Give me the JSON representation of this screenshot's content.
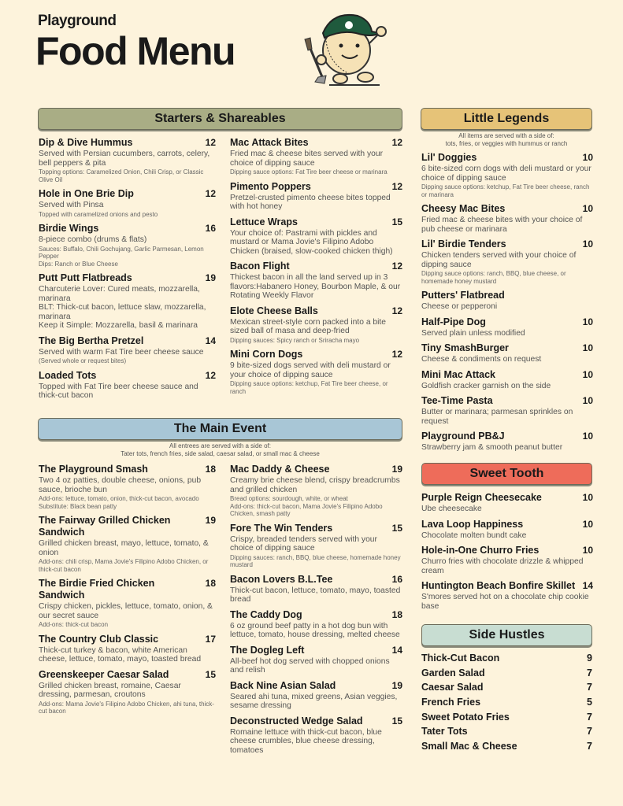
{
  "brand": "Playground",
  "title": "Food Menu",
  "colors": {
    "background": "#fdf3dc",
    "starters": "#a9ad85",
    "main": "#a8c6d6",
    "little": "#e6c378",
    "sweet": "#ee6c5a",
    "side": "#c8ddd2"
  },
  "starters": {
    "title": "Starters & Shareables",
    "left": [
      {
        "name": "Dip & Dive Hummus",
        "price": "12",
        "desc": "Served with Persian cucumbers, carrots, celery, bell peppers & pita",
        "sub": "Topping options: Caramelized Onion, Chili Crisp, or Classic Olive Oil"
      },
      {
        "name": "Hole in One Brie Dip",
        "price": "12",
        "desc": "Served with Pinsa",
        "sub": "Topped with caramelized onions and pesto"
      },
      {
        "name": "Birdie Wings",
        "price": "16",
        "desc": "8-piece combo (drums & flats)",
        "sub": "Sauces: Buffalo, Chili Gochujang, Garlic Parmesan, Lemon Pepper\nDips: Ranch or Blue Cheese"
      },
      {
        "name": "Putt Putt Flatbreads",
        "price": "19",
        "desc": "Charcuterie Lover: Cured meats, mozzarella, marinara\nBLT: Thick-cut bacon, lettuce slaw, mozzarella, marinara\nKeep it Simple: Mozzarella, basil & marinara"
      },
      {
        "name": "The Big Bertha Pretzel",
        "price": "14",
        "desc": "Served with warm Fat Tire beer cheese sauce",
        "sub": "(Served whole or request bites)"
      },
      {
        "name": "Loaded Tots",
        "price": "12",
        "desc": "Topped with Fat Tire beer cheese sauce and thick-cut bacon"
      }
    ],
    "right": [
      {
        "name": "Mac Attack Bites",
        "price": "12",
        "desc": "Fried mac & cheese bites served with your choice of dipping sauce",
        "sub": "Dipping sauce options: Fat Tire beer cheese or marinara"
      },
      {
        "name": "Pimento Poppers",
        "price": "12",
        "desc": "Pretzel-crusted pimento cheese bites topped with hot honey"
      },
      {
        "name": "Lettuce Wraps",
        "price": "15",
        "desc": "Your choice of: Pastrami with pickles and mustard or Mama Jovie's Filipino Adobo Chicken (braised, slow-cooked chicken thigh)"
      },
      {
        "name": "Bacon Flight",
        "price": "12",
        "desc": "Thickest bacon in all the land served up in 3 flavors:Habanero Honey, Bourbon Maple, & our Rotating Weekly Flavor"
      },
      {
        "name": "Elote Cheese Balls",
        "price": "12",
        "desc": "Mexican street-style corn packed into a bite sized ball of masa and deep-fried",
        "sub": "Dipping sauces: Spicy ranch or Sriracha mayo"
      },
      {
        "name": "Mini Corn Dogs",
        "price": "12",
        "desc": "9 bite-sized dogs served with deli mustard or your choice of dipping sauce",
        "sub": "Dipping sauce options: ketchup, Fat Tire beer cheese, or ranch"
      }
    ]
  },
  "main": {
    "title": "The Main Event",
    "note": "All entrees are served with a side of:\nTater tots, french fries, side salad, caesar salad, or small mac & cheese",
    "left": [
      {
        "name": "The Playground Smash",
        "price": "18",
        "desc": "Two 4 oz patties, double cheese, onions, pub sauce, brioche bun",
        "sub": "Add-ons: lettuce, tomato, onion, thick-cut bacon, avocado\nSubstitute: Black bean patty"
      },
      {
        "name": "The Fairway Grilled Chicken Sandwich",
        "price": "19",
        "desc": "Grilled chicken breast, mayo, lettuce, tomato, & onion",
        "sub": "Add-ons: chili crisp, Mama Jovie's Filipino Adobo Chicken, or thick-cut bacon"
      },
      {
        "name": "The Birdie Fried Chicken Sandwich",
        "price": "18",
        "desc": "Crispy chicken, pickles, lettuce, tomato, onion, & our secret sauce",
        "sub": "Add-ons: thick-cut bacon"
      },
      {
        "name": "The Country Club Classic",
        "price": "17",
        "desc": "Thick-cut turkey & bacon, white American cheese, lettuce, tomato, mayo, toasted bread"
      },
      {
        "name": "Greenskeeper Caesar Salad",
        "price": "15",
        "desc": "Grilled chicken breast, romaine, Caesar dressing, parmesan, croutons",
        "sub": "Add-ons: Mama Jovie's Filipino Adobo Chicken, ahi tuna, thick-cut bacon"
      }
    ],
    "right": [
      {
        "name": "Mac Daddy & Cheese",
        "price": "19",
        "desc": "Creamy brie cheese blend, crispy breadcrumbs and grilled chicken",
        "sub": "Bread options: sourdough, white, or wheat\nAdd-ons: thick-cut bacon, Mama Jovie's Filipino Adobo Chicken, smash patty"
      },
      {
        "name": "Fore The Win Tenders",
        "price": "15",
        "desc": "Crispy, breaded tenders served with your choice of dipping sauce",
        "sub": "Dipping sauces: ranch, BBQ, blue cheese, homemade honey mustard"
      },
      {
        "name": "Bacon Lovers B.L.Tee",
        "price": "16",
        "desc": "Thick-cut bacon, lettuce, tomato, mayo, toasted bread"
      },
      {
        "name": "The Caddy Dog",
        "price": "18",
        "desc": "6 oz ground beef patty in a hot dog bun with lettuce, tomato, house dressing, melted cheese"
      },
      {
        "name": "The Dogleg Left",
        "price": "14",
        "desc": "All-beef hot dog served with chopped onions and relish"
      },
      {
        "name": "Back Nine Asian Salad",
        "price": "19",
        "desc": "Seared ahi tuna, mixed greens, Asian veggies, sesame dressing"
      },
      {
        "name": "Deconstructed Wedge Salad",
        "price": "15",
        "desc": "Romaine lettuce with thick-cut bacon, blue cheese crumbles, blue cheese dressing, tomatoes"
      }
    ]
  },
  "little": {
    "title": "Little Legends",
    "note": "All items are served with a side of:\ntots, fries, or veggies with hummus or ranch",
    "items": [
      {
        "name": "Lil' Doggies",
        "price": "10",
        "desc": "6 bite-sized corn dogs with deli mustard or your choice of dipping sauce",
        "sub": "Dipping sauce options: ketchup, Fat Tire beer cheese, ranch or marinara"
      },
      {
        "name": "Cheesy Mac Bites",
        "price": "10",
        "desc": "Fried mac & cheese bites with your choice of pub cheese or marinara"
      },
      {
        "name": "Lil' Birdie Tenders",
        "price": "10",
        "desc": "Chicken tenders served with your choice of dipping sauce",
        "sub": "Dipping sauce options: ranch, BBQ, blue cheese, or homemade honey mustard"
      },
      {
        "name": "Putters' Flatbread",
        "desc": "Cheese or pepperoni"
      },
      {
        "name": "Half-Pipe Dog",
        "price": "10",
        "desc": "Served plain unless modified"
      },
      {
        "name": "Tiny SmashBurger",
        "price": "10",
        "desc": "Cheese & condiments on request"
      },
      {
        "name": "Mini Mac Attack",
        "price": "10",
        "desc": "Goldfish cracker garnish on the side"
      },
      {
        "name": "Tee-Time Pasta",
        "price": "10",
        "desc": "Butter or marinara; parmesan sprinkles on request"
      },
      {
        "name": "Playground PB&J",
        "price": "10",
        "desc": "Strawberry jam & smooth peanut butter"
      }
    ]
  },
  "sweet": {
    "title": "Sweet Tooth",
    "items": [
      {
        "name": "Purple Reign Cheesecake",
        "price": "10",
        "desc": "Ube cheesecake"
      },
      {
        "name": "Lava Loop Happiness",
        "price": "10",
        "desc": "Chocolate molten bundt cake"
      },
      {
        "name": "Hole-in-One Churro Fries",
        "price": "10",
        "desc": "Churro fries with chocolate drizzle & whipped cream"
      },
      {
        "name": "Huntington Beach Bonfire Skillet",
        "price": "14",
        "desc": "S'mores served hot on a chocolate chip cookie base"
      }
    ]
  },
  "side": {
    "title": "Side Hustles",
    "items": [
      {
        "name": "Thick-Cut Bacon",
        "price": "9"
      },
      {
        "name": "Garden Salad",
        "price": "7"
      },
      {
        "name": "Caesar Salad",
        "price": "7"
      },
      {
        "name": "French Fries",
        "price": "5"
      },
      {
        "name": "Sweet Potato Fries",
        "price": "7"
      },
      {
        "name": "Tater Tots",
        "price": "7"
      },
      {
        "name": "Small Mac & Cheese",
        "price": "7"
      }
    ]
  }
}
